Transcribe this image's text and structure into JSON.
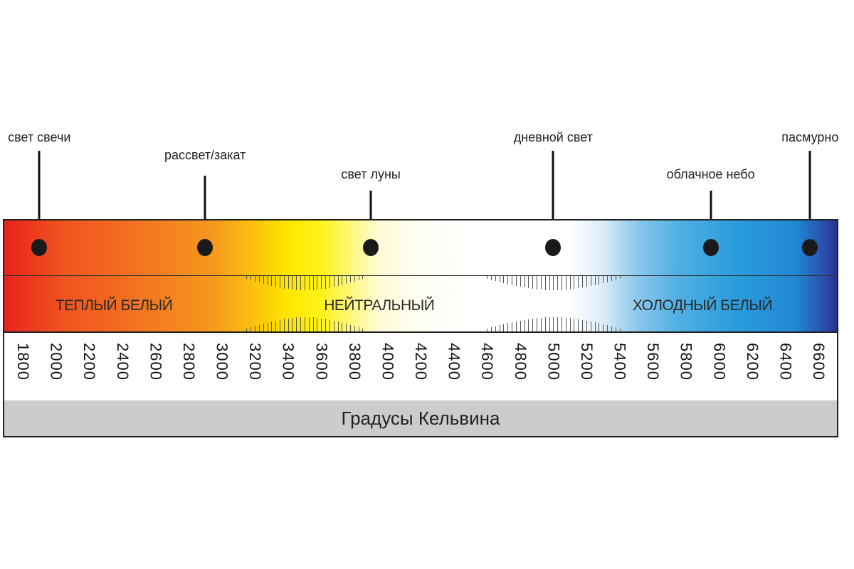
{
  "callouts": [
    {
      "label": "свет свечи",
      "kelvin": 1900,
      "row": "high"
    },
    {
      "label": "рассвет/закат",
      "kelvin": 2900,
      "row": "mid"
    },
    {
      "label": "свет луны",
      "kelvin": 3900,
      "row": "low"
    },
    {
      "label": "дневной свет",
      "kelvin": 5000,
      "row": "high"
    },
    {
      "label": "облачное небо",
      "kelvin": 5950,
      "row": "low"
    },
    {
      "label": "пасмурно",
      "kelvin": 6550,
      "row": "high"
    }
  ],
  "zones": [
    {
      "label": "ТЕПЛЫЙ БЕЛЫЙ",
      "kelvin": 2350
    },
    {
      "label": "НЕЙТРАЛЬНЫЙ",
      "kelvin": 3950
    },
    {
      "label": "ХОЛОДНЫЙ БЕЛЫЙ",
      "kelvin": 5900
    }
  ],
  "scale": {
    "ticks": [
      1800,
      2000,
      2200,
      2400,
      2600,
      2800,
      3000,
      3200,
      3400,
      3600,
      3800,
      4000,
      4200,
      4400,
      4600,
      4800,
      5000,
      5200,
      5400,
      5600,
      5800,
      6000,
      6200,
      6400,
      6600
    ]
  },
  "footer": {
    "label": "Градусы Кельвина"
  },
  "colors": {
    "warm": "#e8221f",
    "yellow": "#ffe600",
    "neutral": "#ffffff",
    "cool": "#2a9cdc",
    "deep_blue": "#23308a"
  }
}
